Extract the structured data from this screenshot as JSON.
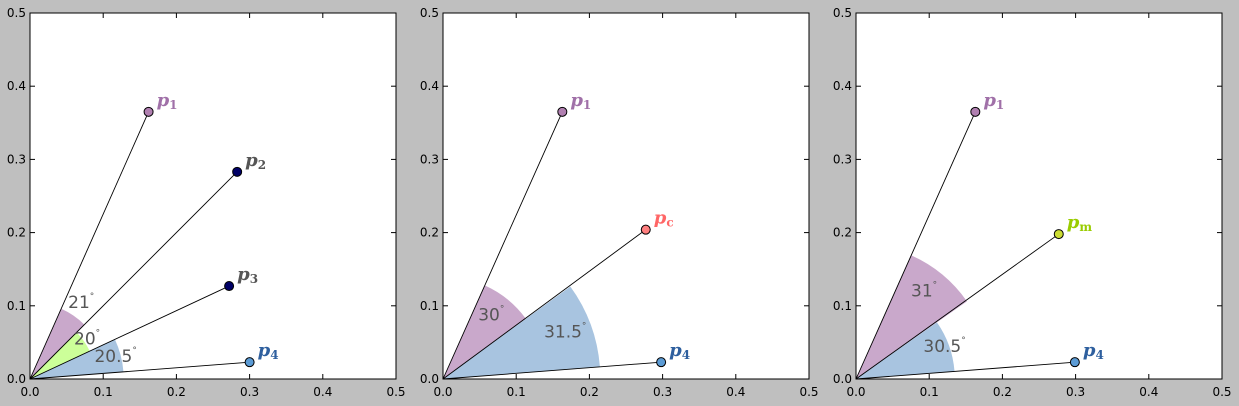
{
  "chart_data": [
    {
      "type": "scatter",
      "title": "",
      "xlabel": "",
      "ylabel": "",
      "xlim": [
        0.0,
        0.5
      ],
      "ylim": [
        0.0,
        0.5
      ],
      "xticks": [
        "0.0",
        "0.1",
        "0.2",
        "0.3",
        "0.4",
        "0.5"
      ],
      "yticks": [
        "0.0",
        "0.1",
        "0.2",
        "0.3",
        "0.4",
        "0.5"
      ],
      "grid": false,
      "points": [
        {
          "name": "p",
          "sub": "1",
          "x": 0.162,
          "y": 0.365,
          "color": "#b07fb0",
          "label_color": "#a070a8"
        },
        {
          "name": "p",
          "sub": "2",
          "x": 0.283,
          "y": 0.283,
          "color": "#000066",
          "label_color": "#555555"
        },
        {
          "name": "p",
          "sub": "3",
          "x": 0.272,
          "y": 0.127,
          "color": "#000066",
          "label_color": "#555555"
        },
        {
          "name": "p",
          "sub": "4",
          "x": 0.3,
          "y": 0.023,
          "color": "#5b9bd5",
          "label_color": "#2e5f9e"
        }
      ],
      "wedges": [
        {
          "theta1": 66.0,
          "theta2": 45.0,
          "radius": 0.105,
          "color": "#c9a8cb",
          "label": "21",
          "lx": 0.07,
          "ly": 0.097
        },
        {
          "theta1": 45.0,
          "theta2": 25.0,
          "radius": 0.09,
          "color": "#ccff99",
          "label": "20",
          "lx": 0.078,
          "ly": 0.047
        },
        {
          "theta1": 25.0,
          "theta2": 4.5,
          "radius": 0.128,
          "color": "#a8c4e0",
          "label": "20.5",
          "lx": 0.117,
          "ly": 0.023
        }
      ]
    },
    {
      "type": "scatter",
      "title": "",
      "xlabel": "",
      "ylabel": "",
      "xlim": [
        0.0,
        0.5
      ],
      "ylim": [
        0.0,
        0.5
      ],
      "xticks": [
        "0.0",
        "0.1",
        "0.2",
        "0.3",
        "0.4",
        "0.5"
      ],
      "yticks": [
        "0.0",
        "0.1",
        "0.2",
        "0.3",
        "0.4",
        "0.5"
      ],
      "grid": false,
      "points": [
        {
          "name": "p",
          "sub": "1",
          "x": 0.163,
          "y": 0.365,
          "color": "#b07fb0",
          "label_color": "#a070a8"
        },
        {
          "name": "p",
          "sub": "c",
          "x": 0.277,
          "y": 0.204,
          "color": "#ff7f7f",
          "label_color": "#ff6666"
        },
        {
          "name": "p",
          "sub": "4",
          "x": 0.298,
          "y": 0.023,
          "color": "#5b9bd5",
          "label_color": "#2e5f9e"
        }
      ],
      "wedges": [
        {
          "theta1": 66.0,
          "theta2": 36.0,
          "radius": 0.14,
          "color": "#c9a8cb",
          "label": "30",
          "lx": 0.066,
          "ly": 0.08
        },
        {
          "theta1": 36.0,
          "theta2": 4.5,
          "radius": 0.215,
          "color": "#a8c4e0",
          "label": "31.5",
          "lx": 0.167,
          "ly": 0.057
        }
      ]
    },
    {
      "type": "scatter",
      "title": "",
      "xlabel": "",
      "ylabel": "",
      "xlim": [
        0.0,
        0.5
      ],
      "ylim": [
        0.0,
        0.5
      ],
      "xticks": [
        "0.0",
        "0.1",
        "0.2",
        "0.3",
        "0.4",
        "0.5"
      ],
      "yticks": [
        "0.0",
        "0.1",
        "0.2",
        "0.3",
        "0.4",
        "0.5"
      ],
      "grid": false,
      "points": [
        {
          "name": "p",
          "sub": "1",
          "x": 0.163,
          "y": 0.365,
          "color": "#b07fb0",
          "label_color": "#a070a8"
        },
        {
          "name": "p",
          "sub": "m",
          "x": 0.277,
          "y": 0.198,
          "color": "#ccdd33",
          "label_color": "#99cc00"
        },
        {
          "name": "p",
          "sub": "4",
          "x": 0.299,
          "y": 0.023,
          "color": "#5b9bd5",
          "label_color": "#2e5f9e"
        }
      ],
      "wedges": [
        {
          "theta1": 66.0,
          "theta2": 35.0,
          "radius": 0.185,
          "color": "#c9a8cb",
          "label": "31",
          "lx": 0.093,
          "ly": 0.113
        },
        {
          "theta1": 35.0,
          "theta2": 4.5,
          "radius": 0.135,
          "color": "#a8c4e0",
          "label": "30.5",
          "lx": 0.121,
          "ly": 0.037
        }
      ]
    }
  ]
}
